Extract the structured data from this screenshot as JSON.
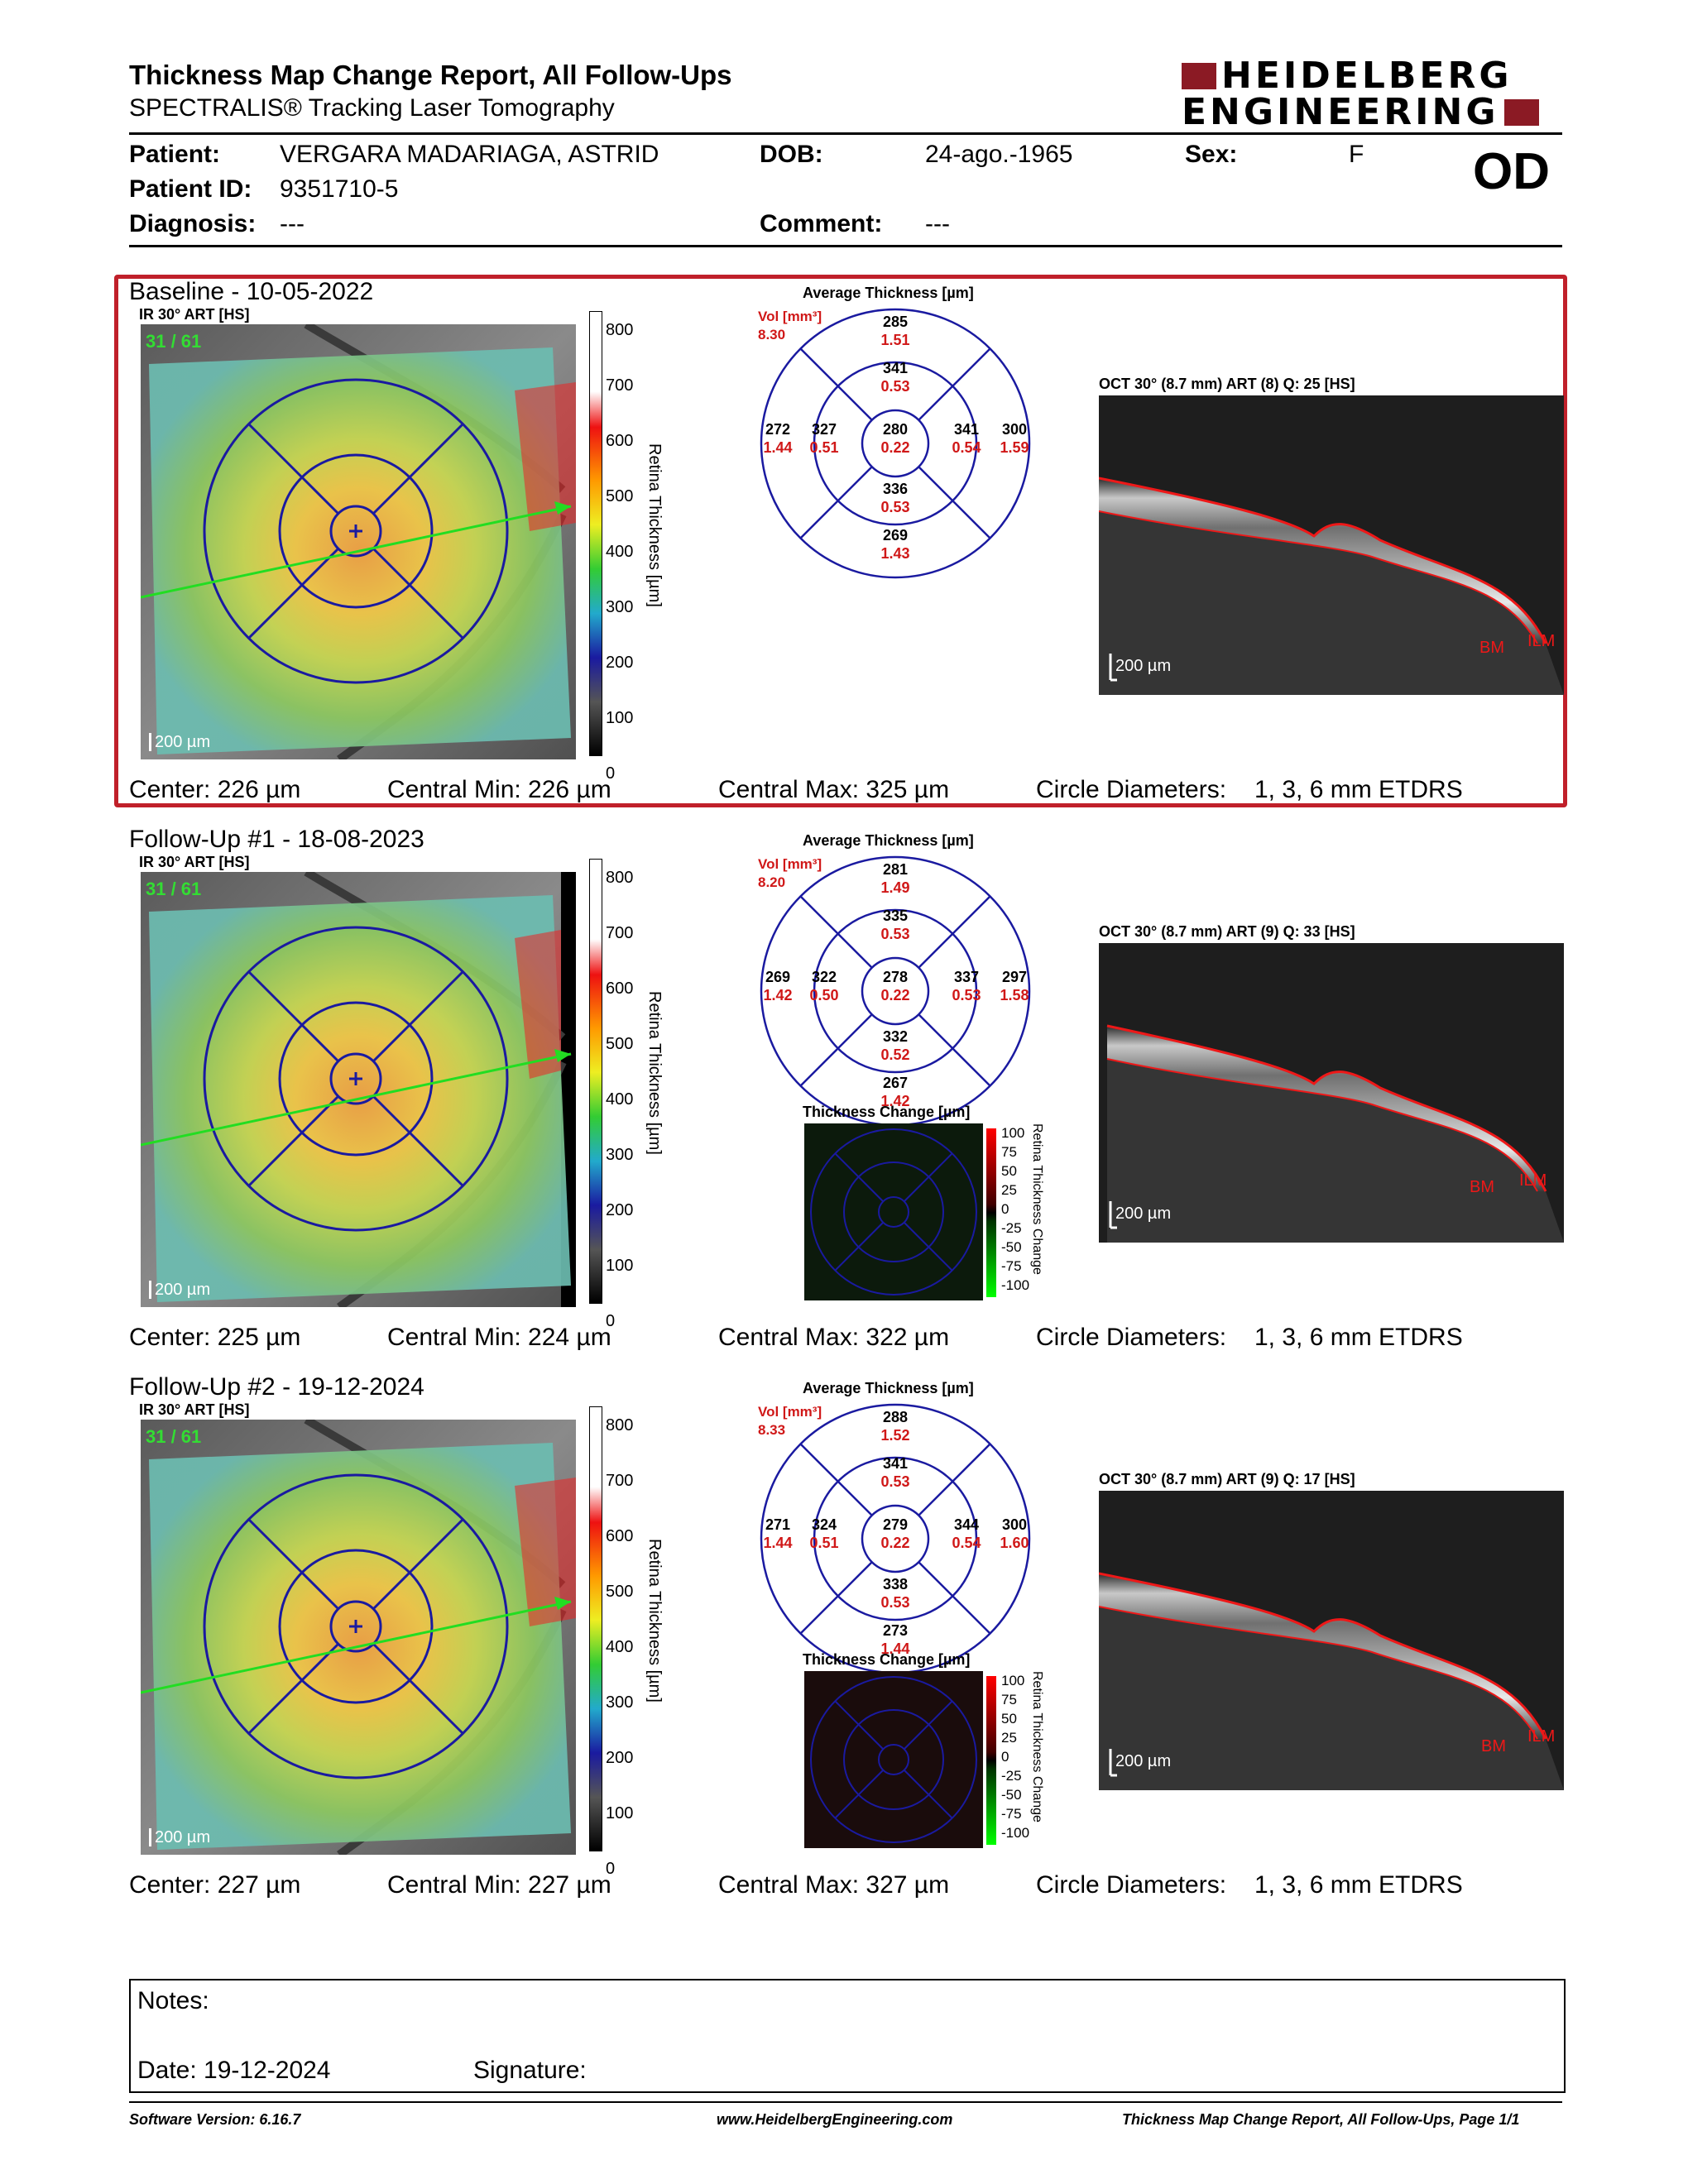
{
  "header": {
    "title": "Thickness Map Change Report, All Follow-Ups",
    "subtitle": "SPECTRALIS® Tracking Laser Tomography",
    "logo_line1": "HEIDELBERG",
    "logo_line2": "ENGINEERING",
    "eye": "OD"
  },
  "patient": {
    "name_label": "Patient:",
    "name": "VERGARA MADARIAGA, ASTRID",
    "dob_label": "DOB:",
    "dob": "24-ago.-1965",
    "sex_label": "Sex:",
    "sex": "F",
    "id_label": "Patient ID:",
    "id": "9351710-5",
    "diagnosis_label": "Diagnosis:",
    "diagnosis": "---",
    "comment_label": "Comment:",
    "comment": "---"
  },
  "common": {
    "ir_label": "IR 30° ART [HS]",
    "frame_counter": "31 / 61",
    "scale_bar": "200 µm",
    "colorbar_ticks": [
      "800",
      "700",
      "600",
      "500",
      "400",
      "300",
      "200",
      "100",
      "0"
    ],
    "colorbar_title": "Retina Thickness [µm]",
    "avg_title": "Average Thickness [µm]",
    "vol_label": "Vol [mm³]",
    "change_title": "Thickness Change [µm]",
    "change_ticks": [
      "100",
      "75",
      "50",
      "25",
      "0",
      "-25",
      "-50",
      "-75",
      "-100"
    ],
    "change_colorbar_title": "Retina Thickness Change",
    "bm": "BM",
    "ilm": "ILM",
    "circle_diameters_label": "Circle Diameters:",
    "circle_diameters_value": "1, 3, 6 mm ETDRS"
  },
  "exams": [
    {
      "title": "Baseline - 10-05-2022",
      "oct_label": "OCT 30° (8.7 mm) ART (8) Q: 25 [HS]",
      "vol": "8.30",
      "sectors": {
        "outer_sup": [
          "285",
          "1.51"
        ],
        "inner_sup": [
          "341",
          "0.53"
        ],
        "outer_temp": [
          "272",
          "1.44"
        ],
        "inner_temp": [
          "327",
          "0.51"
        ],
        "center": [
          "280",
          "0.22"
        ],
        "inner_nas": [
          "341",
          "0.54"
        ],
        "outer_nas": [
          "300",
          "1.59"
        ],
        "inner_inf": [
          "336",
          "0.53"
        ],
        "outer_inf": [
          "269",
          "1.43"
        ]
      },
      "center": "Center: 226 µm",
      "central_min": "Central Min: 226 µm",
      "central_max": "Central Max: 325 µm"
    },
    {
      "title": "Follow-Up #1 - 18-08-2023",
      "oct_label": "OCT 30° (8.7 mm) ART (9) Q: 33 [HS]",
      "vol": "8.20",
      "sectors": {
        "outer_sup": [
          "281",
          "1.49"
        ],
        "inner_sup": [
          "335",
          "0.53"
        ],
        "outer_temp": [
          "269",
          "1.42"
        ],
        "inner_temp": [
          "322",
          "0.50"
        ],
        "center": [
          "278",
          "0.22"
        ],
        "inner_nas": [
          "337",
          "0.53"
        ],
        "outer_nas": [
          "297",
          "1.58"
        ],
        "inner_inf": [
          "332",
          "0.52"
        ],
        "outer_inf": [
          "267",
          "1.42"
        ]
      },
      "center": "Center: 225 µm",
      "central_min": "Central Min: 224 µm",
      "central_max": "Central Max: 322 µm"
    },
    {
      "title": "Follow-Up #2 - 19-12-2024",
      "oct_label": "OCT 30° (8.7 mm) ART (9) Q: 17 [HS]",
      "vol": "8.33",
      "sectors": {
        "outer_sup": [
          "288",
          "1.52"
        ],
        "inner_sup": [
          "341",
          "0.53"
        ],
        "outer_temp": [
          "271",
          "1.44"
        ],
        "inner_temp": [
          "324",
          "0.51"
        ],
        "center": [
          "279",
          "0.22"
        ],
        "inner_nas": [
          "344",
          "0.54"
        ],
        "outer_nas": [
          "300",
          "1.60"
        ],
        "inner_inf": [
          "338",
          "0.53"
        ],
        "outer_inf": [
          "273",
          "1.44"
        ]
      },
      "center": "Center: 227 µm",
      "central_min": "Central Min: 227 µm",
      "central_max": "Central Max: 327 µm"
    }
  ],
  "notes": {
    "notes_label": "Notes:",
    "date_label": "Date: 19-12-2024",
    "signature_label": "Signature:"
  },
  "footer": {
    "software": "Software Version: 6.16.7",
    "website": "www.HeidelbergEngineering.com",
    "page": "Thickness Map Change Report, All Follow-Ups, Page 1/1"
  },
  "colors": {
    "baseline_border": "#c0202a",
    "grid_blue": "#1a1aa0",
    "value_red": "#d01818",
    "scan_line_green": "#22dd22"
  }
}
